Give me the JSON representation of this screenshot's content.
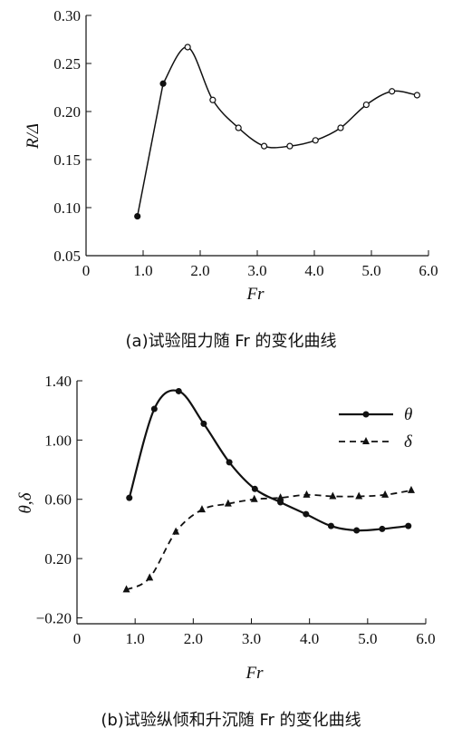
{
  "chart_data": [
    {
      "type": "line",
      "caption": "(a)试验阻力随 Fr 的变化曲线",
      "xlabel": "Fr",
      "ylabel": "R/Δ",
      "xlim": [
        0,
        6.0
      ],
      "ylim": [
        0.05,
        0.3
      ],
      "xticks": [
        "0",
        "1.0",
        "2.0",
        "3.0",
        "4.0",
        "5.0",
        "6.0"
      ],
      "yticks": [
        "0.05",
        "0.10",
        "0.15",
        "0.20",
        "0.25",
        "0.30"
      ],
      "grid": false,
      "series": [
        {
          "x": [
            0.9,
            1.35,
            1.78,
            2.22,
            2.67,
            3.12,
            3.57,
            4.02,
            4.46,
            4.91,
            5.36,
            5.8
          ],
          "y": [
            0.091,
            0.229,
            0.267,
            0.212,
            0.183,
            0.164,
            0.164,
            0.17,
            0.183,
            0.207,
            0.221,
            0.217
          ]
        }
      ]
    },
    {
      "type": "line",
      "caption": "(b)试验纵倾和升沉随 Fr 的变化曲线",
      "xlabel": "Fr",
      "ylabel": "θ,δ",
      "xlim": [
        0,
        6.0
      ],
      "ylim": [
        -0.24,
        1.4
      ],
      "xticks": [
        "0",
        "1.0",
        "2.0",
        "3.0",
        "4.0",
        "5.0",
        "6.0"
      ],
      "yticks": [
        "1.40",
        "1.00",
        "0.60",
        "0.20",
        "−0.20"
      ],
      "grid": false,
      "legend": "top-right",
      "series": [
        {
          "name": "θ",
          "x": [
            0.9,
            1.33,
            1.75,
            2.18,
            2.62,
            3.06,
            3.5,
            3.94,
            4.37,
            4.81,
            5.25,
            5.7
          ],
          "y": [
            0.61,
            1.21,
            1.33,
            1.11,
            0.85,
            0.67,
            0.58,
            0.5,
            0.42,
            0.39,
            0.4,
            0.42
          ]
        },
        {
          "name": "δ",
          "x": [
            0.85,
            1.25,
            1.7,
            2.15,
            2.6,
            3.05,
            3.5,
            3.95,
            4.4,
            4.85,
            5.3,
            5.75
          ],
          "y": [
            -0.01,
            0.07,
            0.38,
            0.53,
            0.57,
            0.6,
            0.61,
            0.63,
            0.62,
            0.62,
            0.63,
            0.66
          ]
        }
      ]
    }
  ]
}
